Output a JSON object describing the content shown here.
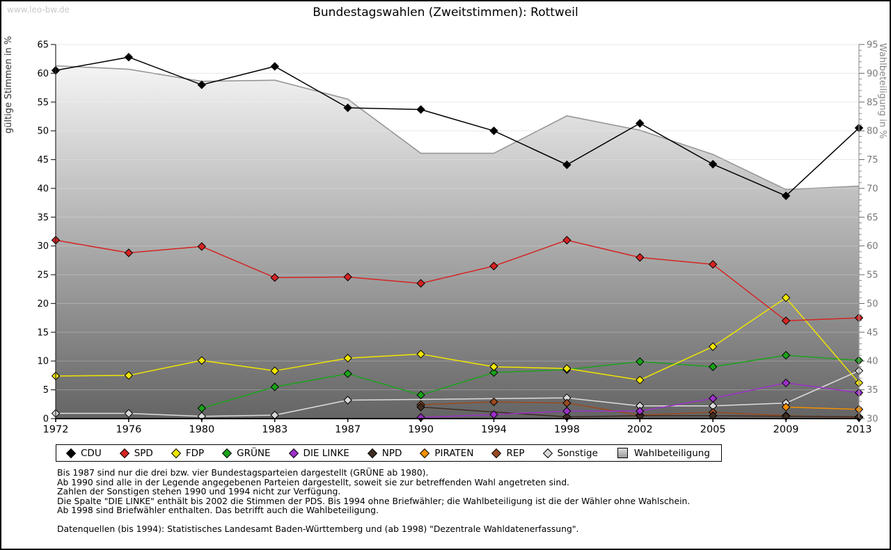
{
  "watermark": "www.leo-bw.de",
  "chart_data": {
    "type": "line",
    "title": "Bundestagswahlen (Zweitstimmen): Rottweil",
    "x_categories": [
      "1972",
      "1976",
      "1980",
      "1983",
      "1987",
      "1990",
      "1994",
      "1998",
      "2002",
      "2005",
      "2009",
      "2013"
    ],
    "left_axis": {
      "label": "gültige Stimmen in %",
      "min": 0,
      "max": 65,
      "ticks": [
        0,
        5,
        10,
        15,
        20,
        25,
        30,
        35,
        40,
        45,
        50,
        55,
        60,
        65
      ]
    },
    "right_axis": {
      "label": "Wahlbeteiligung in %",
      "min": 30,
      "max": 95,
      "ticks": [
        30,
        35,
        40,
        45,
        50,
        55,
        60,
        65,
        70,
        75,
        80,
        85,
        90,
        95
      ]
    },
    "grid": true,
    "legend_position": "bottom",
    "area_fill": {
      "top": "#fdfdfd",
      "bottom": "#646464"
    },
    "series": [
      {
        "name": "CDU",
        "color": "#000000",
        "swatch": "diamond",
        "axis": "left",
        "values": [
          60.5,
          62.8,
          58.0,
          61.2,
          54.0,
          53.7,
          50.0,
          44.1,
          51.3,
          44.2,
          38.7,
          50.5
        ]
      },
      {
        "name": "SPD",
        "color": "#d62323",
        "swatch": "diamond",
        "axis": "left",
        "values": [
          31.0,
          28.8,
          29.9,
          24.5,
          24.6,
          23.5,
          26.5,
          31.0,
          28.0,
          26.8,
          17.0,
          17.5
        ]
      },
      {
        "name": "FDP",
        "color": "#f2e600",
        "swatch": "diamond",
        "axis": "left",
        "values": [
          7.4,
          7.5,
          10.1,
          8.3,
          10.5,
          11.2,
          9.0,
          8.7,
          6.7,
          12.5,
          21.0,
          6.2
        ]
      },
      {
        "name": "GRÜNE",
        "color": "#1aa21a",
        "swatch": "diamond",
        "axis": "left",
        "values": [
          null,
          null,
          1.8,
          5.5,
          7.8,
          4.1,
          8.0,
          8.5,
          9.9,
          9.0,
          11.0,
          10.1
        ]
      },
      {
        "name": "DIE LINKE",
        "color": "#9c31c9",
        "swatch": "diamond",
        "axis": "left",
        "values": [
          null,
          null,
          null,
          null,
          null,
          0.2,
          0.7,
          1.3,
          1.3,
          3.5,
          6.2,
          4.5
        ]
      },
      {
        "name": "NPD",
        "color": "#40settle2d22",
        "swatch": "diamond",
        "axis": "left",
        "values": [
          null,
          null,
          null,
          null,
          null,
          2.0,
          null,
          0.3,
          0.5,
          0.5,
          0.4,
          0.3
        ]
      },
      {
        "name": "PIRATEN",
        "color": "#f59000",
        "swatch": "diamond",
        "axis": "left",
        "values": [
          null,
          null,
          null,
          null,
          null,
          null,
          null,
          null,
          null,
          null,
          2.0,
          1.6
        ]
      },
      {
        "name": "REP",
        "color": "#9a4a20",
        "swatch": "diamond",
        "axis": "left",
        "values": [
          null,
          null,
          null,
          null,
          null,
          2.4,
          2.9,
          2.7,
          0.6,
          1.1,
          0.5,
          0.2
        ]
      },
      {
        "name": "Sonstige",
        "color": "#d9d9d9",
        "swatch": "diamond",
        "axis": "left",
        "values": [
          0.9,
          0.9,
          0.4,
          0.6,
          3.2,
          null,
          null,
          3.6,
          2.2,
          2.2,
          2.7,
          8.3
        ]
      },
      {
        "name": "Wahlbeteiligung",
        "color": "#969696",
        "swatch": "square",
        "axis": "right",
        "style": "area",
        "values": [
          91.3,
          90.7,
          88.6,
          88.8,
          85.5,
          76.1,
          76.1,
          82.6,
          80.1,
          75.9,
          69.8,
          70.4
        ]
      }
    ],
    "notes": [
      "Bis 1987 sind nur die drei bzw. vier Bundestagsparteien dargestellt (GRÜNE ab 1980).",
      "Ab 1990 sind alle in der Legende angegebenen Parteien dargestellt, soweit sie zur betreffenden Wahl angetreten sind.",
      "Zahlen der Sonstigen stehen 1990 und 1994 nicht zur Verfügung.",
      "Die Spalte \"DIE LINKE\" enthält bis 2002 die Stimmen der PDS. Bis 1994 ohne Briefwähler; die Wahlbeteiligung ist die der Wähler ohne Wahlschein.",
      "Ab 1998 sind Briefwähler enthalten. Das betrifft auch die Wahlbeteiligung."
    ],
    "source": "Datenquellen (bis 1994): Statistisches Landesamt Baden-Württemberg und (ab 1998) \"Dezentrale Wahldatenerfassung\"."
  }
}
